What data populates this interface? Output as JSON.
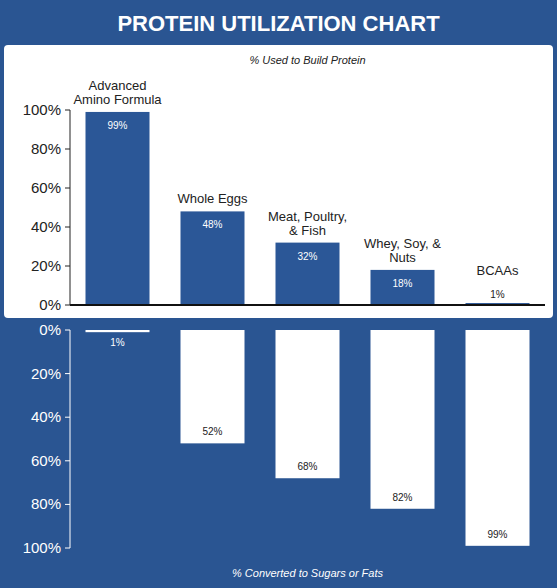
{
  "chart_data": {
    "type": "bar",
    "title": "PROTEIN UTILIZATION CHART",
    "categories": [
      "Advanced Amino Formula",
      "Whole Eggs",
      "Meat, Poultry, & Fish",
      "Whey, Soy, & Nuts",
      "BCAAs"
    ],
    "series": [
      {
        "name": "% Used to Build Protein",
        "color": "#2b5797",
        "values": [
          99,
          48,
          32,
          18,
          1
        ],
        "value_labels": [
          "99%",
          "48%",
          "32%",
          "18%",
          "1%"
        ]
      },
      {
        "name": "% Converted to Sugars or Fats",
        "color": "#ffffff",
        "axis": "y2",
        "values": [
          1,
          52,
          68,
          82,
          99
        ],
        "value_labels": [
          "1%",
          "52%",
          "68%",
          "82%",
          "99%"
        ]
      }
    ],
    "ylim": [
      0,
      100
    ],
    "yticks": [
      {
        "value": 0,
        "label": "0%"
      },
      {
        "value": 20,
        "label": "20%"
      },
      {
        "value": 40,
        "label": "40%"
      },
      {
        "value": 60,
        "label": "60%"
      },
      {
        "value": 80,
        "label": "80%"
      },
      {
        "value": 100,
        "label": "100%"
      }
    ],
    "y2lim": [
      0,
      100
    ],
    "y2ticks": [
      {
        "value": 0,
        "label": "0%"
      },
      {
        "value": 20,
        "label": "20%"
      },
      {
        "value": 40,
        "label": "40%"
      },
      {
        "value": 60,
        "label": "60%"
      },
      {
        "value": 80,
        "label": "80%"
      },
      {
        "value": 100,
        "label": "100%"
      }
    ],
    "grid": false,
    "data_labels": true
  }
}
